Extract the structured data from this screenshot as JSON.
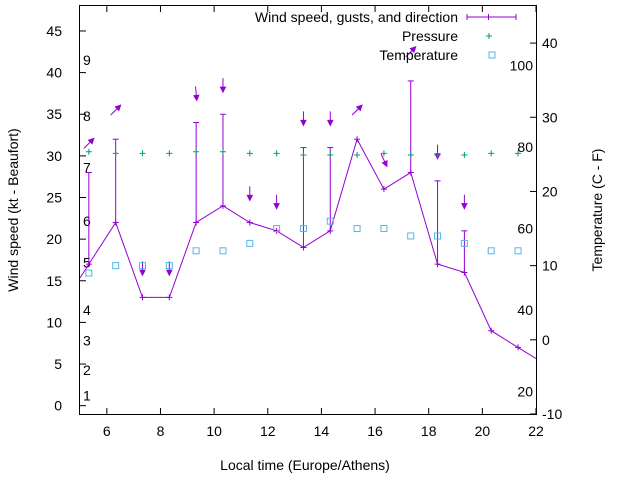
{
  "chart_data": {
    "type": "line",
    "xlabel": "Local time (Europe/Athens)",
    "ylabel": "Wind speed (kt - Beaufort)",
    "y2label": "Temperature (C - F)",
    "xlim": [
      5,
      22
    ],
    "ylim": [
      -1,
      48
    ],
    "y2lim": [
      -10,
      45
    ],
    "x_ticks": [
      "6",
      "8",
      "10",
      "12",
      "14",
      "16",
      "18",
      "20",
      "22"
    ],
    "y_ticks": [
      "0",
      "5",
      "10",
      "15",
      "20",
      "25",
      "30",
      "35",
      "40",
      "45"
    ],
    "y2_ticks": [
      "-10",
      "0",
      "10",
      "20",
      "30",
      "40"
    ],
    "beaufort_labels": [
      {
        "label": "1",
        "y": 1.2
      },
      {
        "label": "2",
        "y": 4.3
      },
      {
        "label": "3",
        "y": 7.8
      },
      {
        "label": "4",
        "y": 11.5
      },
      {
        "label": "5",
        "y": 17.2
      },
      {
        "label": "6",
        "y": 22.2
      },
      {
        "label": "7",
        "y": 28.6
      },
      {
        "label": "8",
        "y": 34.8
      },
      {
        "label": "9",
        "y": 41.5
      }
    ],
    "fahrenheit_labels": [
      {
        "label": "20",
        "y": -7
      },
      {
        "label": "40",
        "y": 4
      },
      {
        "label": "60",
        "y": 15
      },
      {
        "label": "80",
        "y": 26
      },
      {
        "label": "100",
        "y": 37
      }
    ],
    "legend": {
      "position": "top-right",
      "entries": [
        "Wind speed, gusts, and direction",
        "Pressure",
        "Temperature"
      ]
    },
    "colors": {
      "wind": "#9400d3",
      "pressure": "#009e73",
      "temperature": "#56b4e9"
    },
    "series": [
      {
        "name": "Wind speed, gusts, and direction",
        "x": [
          5.33,
          6.33,
          7.33,
          8.33,
          9.33,
          10.33,
          11.33,
          12.33,
          13.33,
          14.33,
          15.33,
          16.33,
          17.33,
          18.33,
          19.33,
          20.33,
          21.33
        ],
        "values": [
          17,
          22,
          13,
          13,
          22,
          24,
          22,
          21,
          19,
          21,
          32,
          26,
          28,
          17,
          16,
          9,
          7
        ],
        "gusts": [
          28,
          32,
          null,
          null,
          34,
          35,
          null,
          null,
          31,
          31,
          null,
          null,
          39,
          27,
          21,
          null,
          null
        ],
        "direction_deg": [
          225,
          225,
          0,
          0,
          355,
          0,
          0,
          0,
          0,
          0,
          225,
          335,
          225,
          0,
          0,
          null,
          null
        ]
      },
      {
        "name": "Pressure",
        "x": [
          5.33,
          6.33,
          7.33,
          8.33,
          9.33,
          10.33,
          11.33,
          12.33,
          13.33,
          14.33,
          15.33,
          16.33,
          17.33,
          18.33,
          19.33,
          20.33,
          21.33
        ],
        "values": [
          30.5,
          30.3,
          30.3,
          30.3,
          30.5,
          30.5,
          30.3,
          30.3,
          30.1,
          30.1,
          30.1,
          30.3,
          30.1,
          30.1,
          30.1,
          30.3,
          30.3
        ]
      },
      {
        "name": "Temperature",
        "x": [
          5.33,
          6.33,
          7.33,
          8.33,
          9.33,
          10.33,
          11.33,
          12.33,
          13.33,
          14.33,
          15.33,
          16.33,
          17.33,
          18.33,
          19.33,
          20.33,
          21.33
        ],
        "values": [
          9,
          10,
          10,
          10,
          12,
          12,
          13,
          15,
          15,
          16,
          15,
          15,
          14,
          14,
          13,
          12,
          12
        ]
      }
    ]
  }
}
